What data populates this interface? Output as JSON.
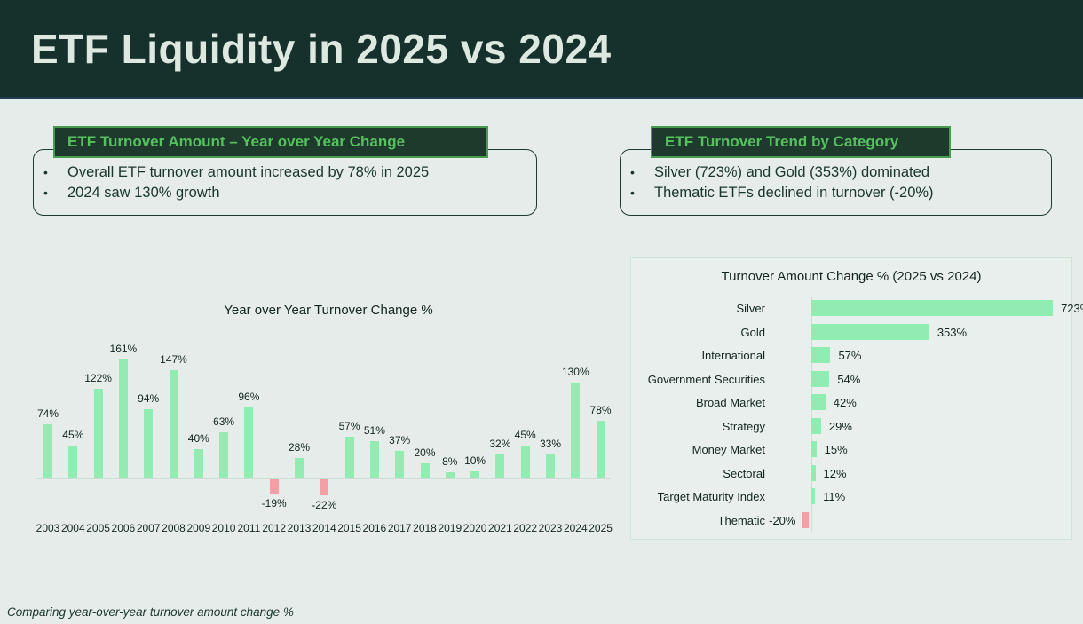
{
  "page": {
    "title": "ETF Liquidity in 2025 vs 2024",
    "footnote": "Comparing year-over-year turnover amount change %"
  },
  "colors": {
    "header_bg": "#16312c",
    "header_underline": "#223d5a",
    "page_bg": "#e6ece9",
    "accent_green_text": "#57c05f",
    "badge_border": "#4a9b52",
    "positive_bar": "#90ecb0",
    "negative_bar": "#f2a0a5",
    "dark_text": "#16302a"
  },
  "left_panel": {
    "badge": "ETF Turnover Amount – Year over Year Change",
    "bullets": [
      "Overall ETF turnover amount increased by 78% in 2025",
      "2024 saw 130% growth"
    ]
  },
  "right_panel": {
    "badge": "ETF Turnover Trend by Category",
    "bullets": [
      "Silver (723%) and Gold (353%) dominated",
      "Thematic ETFs declined in turnover (-20%)"
    ]
  },
  "chart_data": [
    {
      "type": "bar",
      "orientation": "vertical",
      "title": "Year over Year Turnover Change %",
      "categories": [
        "2003",
        "2004",
        "2005",
        "2006",
        "2007",
        "2008",
        "2009",
        "2010",
        "2011",
        "2012",
        "2013",
        "2014",
        "2015",
        "2016",
        "2017",
        "2018",
        "2019",
        "2020",
        "2021",
        "2022",
        "2023",
        "2024",
        "2025"
      ],
      "values": [
        74,
        45,
        122,
        161,
        94,
        147,
        40,
        63,
        96,
        -19,
        28,
        -22,
        57,
        51,
        37,
        20,
        8,
        10,
        32,
        45,
        33,
        130,
        78
      ],
      "value_suffix": "%",
      "ylim": [
        -30,
        175
      ],
      "grid": false,
      "data_labels": true,
      "positive_color": "#90ecb0",
      "negative_color": "#f2a0a5"
    },
    {
      "type": "bar",
      "orientation": "horizontal",
      "title": "Turnover Amount Change % (2025 vs 2024)",
      "categories": [
        "Silver",
        "Gold",
        "International",
        "Government Securities",
        "Broad Market",
        "Strategy",
        "Money Market",
        "Sectoral",
        "Target Maturity Index",
        "Thematic"
      ],
      "values": [
        723,
        353,
        57,
        54,
        42,
        29,
        15,
        12,
        11,
        -20
      ],
      "value_suffix": "%",
      "xlim": [
        -30,
        760
      ],
      "grid": false,
      "data_labels": true,
      "positive_color": "#90ecb0",
      "negative_color": "#f2a0a5"
    }
  ]
}
